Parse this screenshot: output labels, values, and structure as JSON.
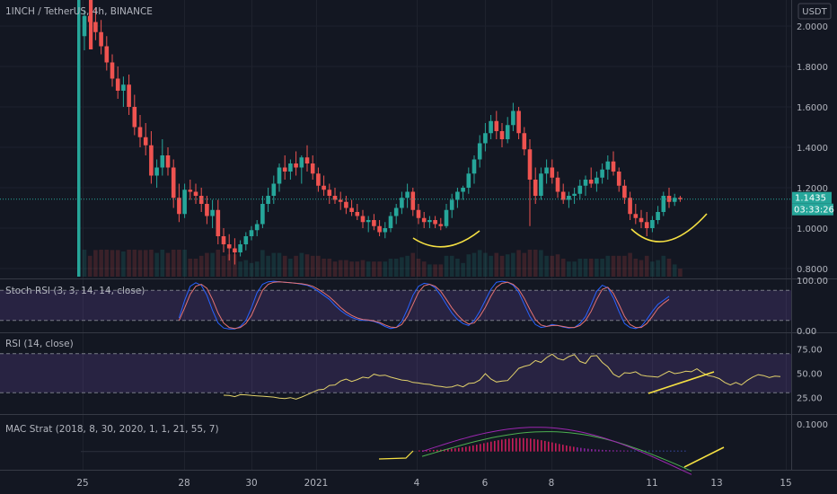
{
  "header": {
    "title": "1INCH / TetherUS, 4h, BINANCE",
    "currency": "USDT"
  },
  "price_tags": {
    "last": "1.1435",
    "countdown": "03:33:26"
  },
  "colors": {
    "up": "#26a69a",
    "down": "#ef5350",
    "annotation": "#f5e043",
    "stoch_k": "#2962ff",
    "stoch_d": "#e57373",
    "rsi": "#e2d16b",
    "band": "#7e57c2",
    "macd_fast": "#9c27b0",
    "macd_slow": "#4caf50"
  },
  "chart_data": [
    {
      "type": "candlestick",
      "title": "1INCH / TetherUS, 4h, BINANCE",
      "ylabel": "USDT",
      "ylim": [
        0.76,
        2.12
      ],
      "y_ticks": [
        "2.0000",
        "1.8000",
        "1.6000",
        "1.4000",
        "1.2000",
        "1.0000",
        "0.8000"
      ],
      "x_ticks": [
        "25",
        "28",
        "30",
        "2021",
        "4",
        "6",
        "8",
        "11",
        "13",
        "15"
      ],
      "last_price": 1.1435,
      "ohlc": [
        [
          1.95,
          2.08,
          1.88,
          2.05
        ],
        [
          2.05,
          2.1,
          1.98,
          2.02
        ],
        [
          2.02,
          2.09,
          1.93,
          1.97
        ],
        [
          1.97,
          2.03,
          1.86,
          1.9
        ],
        [
          1.9,
          1.95,
          1.78,
          1.82
        ],
        [
          1.82,
          1.86,
          1.7,
          1.74
        ],
        [
          1.74,
          1.8,
          1.64,
          1.68
        ],
        [
          1.68,
          1.75,
          1.6,
          1.71
        ],
        [
          1.71,
          1.76,
          1.56,
          1.6
        ],
        [
          1.6,
          1.66,
          1.46,
          1.5
        ],
        [
          1.5,
          1.56,
          1.4,
          1.45
        ],
        [
          1.45,
          1.52,
          1.36,
          1.41
        ],
        [
          1.41,
          1.48,
          1.22,
          1.26
        ],
        [
          1.26,
          1.34,
          1.2,
          1.3
        ],
        [
          1.3,
          1.44,
          1.26,
          1.36
        ],
        [
          1.36,
          1.4,
          1.26,
          1.3
        ],
        [
          1.3,
          1.34,
          1.1,
          1.15
        ],
        [
          1.15,
          1.22,
          1.03,
          1.07
        ],
        [
          1.07,
          1.22,
          1.05,
          1.19
        ],
        [
          1.19,
          1.24,
          1.14,
          1.18
        ],
        [
          1.18,
          1.22,
          1.12,
          1.16
        ],
        [
          1.16,
          1.2,
          1.08,
          1.12
        ],
        [
          1.12,
          1.16,
          1.02,
          1.06
        ],
        [
          1.06,
          1.14,
          1.0,
          1.09
        ],
        [
          1.09,
          1.14,
          0.92,
          0.96
        ],
        [
          0.96,
          1.0,
          0.88,
          0.92
        ],
        [
          0.92,
          0.97,
          0.84,
          0.9
        ],
        [
          0.9,
          0.95,
          0.82,
          0.88
        ],
        [
          0.88,
          0.94,
          0.86,
          0.92
        ],
        [
          0.92,
          0.98,
          0.89,
          0.96
        ],
        [
          0.96,
          1.01,
          0.94,
          0.99
        ],
        [
          0.99,
          1.04,
          0.96,
          1.02
        ],
        [
          1.02,
          1.16,
          1.0,
          1.12
        ],
        [
          1.12,
          1.2,
          1.08,
          1.16
        ],
        [
          1.16,
          1.26,
          1.12,
          1.22
        ],
        [
          1.22,
          1.32,
          1.18,
          1.3
        ],
        [
          1.3,
          1.36,
          1.24,
          1.28
        ],
        [
          1.28,
          1.34,
          1.24,
          1.32
        ],
        [
          1.32,
          1.38,
          1.26,
          1.3
        ],
        [
          1.3,
          1.36,
          1.22,
          1.35
        ],
        [
          1.35,
          1.41,
          1.28,
          1.32
        ],
        [
          1.32,
          1.36,
          1.24,
          1.27
        ],
        [
          1.27,
          1.3,
          1.18,
          1.21
        ],
        [
          1.21,
          1.26,
          1.16,
          1.19
        ],
        [
          1.19,
          1.22,
          1.12,
          1.16
        ],
        [
          1.16,
          1.2,
          1.12,
          1.14
        ],
        [
          1.14,
          1.18,
          1.09,
          1.13
        ],
        [
          1.13,
          1.16,
          1.07,
          1.1
        ],
        [
          1.1,
          1.14,
          1.06,
          1.08
        ],
        [
          1.08,
          1.12,
          1.04,
          1.06
        ],
        [
          1.06,
          1.09,
          1.0,
          1.03
        ],
        [
          1.03,
          1.06,
          0.98,
          1.04
        ],
        [
          1.04,
          1.07,
          0.99,
          1.01
        ],
        [
          1.01,
          1.04,
          0.96,
          0.98
        ],
        [
          0.98,
          1.03,
          0.95,
          1.0
        ],
        [
          1.0,
          1.08,
          0.98,
          1.06
        ],
        [
          1.06,
          1.12,
          1.02,
          1.1
        ],
        [
          1.1,
          1.18,
          1.07,
          1.15
        ],
        [
          1.15,
          1.22,
          1.1,
          1.18
        ],
        [
          1.18,
          1.2,
          1.06,
          1.09
        ],
        [
          1.09,
          1.12,
          1.02,
          1.05
        ],
        [
          1.05,
          1.08,
          1.0,
          1.03
        ],
        [
          1.03,
          1.06,
          1.0,
          1.04
        ],
        [
          1.04,
          1.06,
          1.0,
          1.02
        ],
        [
          1.02,
          1.05,
          0.99,
          1.01
        ],
        [
          1.01,
          1.12,
          1.0,
          1.09
        ],
        [
          1.09,
          1.17,
          1.05,
          1.14
        ],
        [
          1.14,
          1.2,
          1.1,
          1.18
        ],
        [
          1.18,
          1.21,
          1.14,
          1.2
        ],
        [
          1.2,
          1.3,
          1.17,
          1.27
        ],
        [
          1.27,
          1.36,
          1.22,
          1.34
        ],
        [
          1.34,
          1.46,
          1.3,
          1.42
        ],
        [
          1.42,
          1.52,
          1.38,
          1.47
        ],
        [
          1.47,
          1.56,
          1.44,
          1.53
        ],
        [
          1.53,
          1.58,
          1.44,
          1.48
        ],
        [
          1.48,
          1.52,
          1.4,
          1.44
        ],
        [
          1.44,
          1.55,
          1.42,
          1.51
        ],
        [
          1.51,
          1.62,
          1.48,
          1.58
        ],
        [
          1.58,
          1.6,
          1.44,
          1.47
        ],
        [
          1.47,
          1.5,
          1.36,
          1.39
        ],
        [
          1.39,
          1.44,
          1.01,
          1.24
        ],
        [
          1.24,
          1.3,
          1.12,
          1.16
        ],
        [
          1.16,
          1.3,
          1.14,
          1.27
        ],
        [
          1.27,
          1.34,
          1.22,
          1.3
        ],
        [
          1.3,
          1.34,
          1.22,
          1.25
        ],
        [
          1.25,
          1.28,
          1.15,
          1.18
        ],
        [
          1.18,
          1.22,
          1.12,
          1.14
        ],
        [
          1.14,
          1.18,
          1.1,
          1.16
        ],
        [
          1.16,
          1.2,
          1.12,
          1.17
        ],
        [
          1.17,
          1.24,
          1.14,
          1.21
        ],
        [
          1.21,
          1.26,
          1.16,
          1.24
        ],
        [
          1.24,
          1.3,
          1.2,
          1.22
        ],
        [
          1.22,
          1.28,
          1.18,
          1.25
        ],
        [
          1.25,
          1.32,
          1.22,
          1.29
        ],
        [
          1.29,
          1.36,
          1.24,
          1.33
        ],
        [
          1.33,
          1.38,
          1.26,
          1.28
        ],
        [
          1.28,
          1.3,
          1.18,
          1.21
        ],
        [
          1.21,
          1.24,
          1.12,
          1.15
        ],
        [
          1.15,
          1.18,
          1.04,
          1.07
        ],
        [
          1.07,
          1.12,
          1.02,
          1.05
        ],
        [
          1.05,
          1.09,
          1.0,
          1.03
        ],
        [
          1.03,
          1.08,
          0.96,
          1.0
        ],
        [
          1.0,
          1.06,
          0.98,
          1.04
        ],
        [
          1.04,
          1.11,
          1.02,
          1.08
        ],
        [
          1.08,
          1.18,
          1.06,
          1.16
        ],
        [
          1.16,
          1.2,
          1.1,
          1.13
        ],
        [
          1.13,
          1.17,
          1.11,
          1.15
        ],
        [
          1.15,
          1.16,
          1.13,
          1.1435
        ]
      ]
    },
    {
      "type": "line",
      "title": "Stoch RSI (3, 3, 14, 14, close)",
      "ylim": [
        0,
        100
      ],
      "y_ticks": [
        "100.00",
        "0.00"
      ],
      "bands": [
        80,
        20
      ],
      "start_index": 17,
      "series": [
        {
          "values": [
            25,
            60,
            88,
            95,
            90,
            70,
            40,
            15,
            5,
            3,
            3,
            8,
            20,
            45,
            75,
            92,
            97,
            98,
            97,
            96,
            95,
            94,
            92,
            90,
            85,
            78,
            70,
            62,
            50,
            40,
            32,
            26,
            22,
            20,
            20,
            18,
            14,
            8,
            4,
            6,
            18,
            42,
            70,
            88,
            94,
            92,
            85,
            70,
            52,
            35,
            22,
            14,
            10,
            20,
            38,
            60,
            82,
            96,
            98,
            96,
            90,
            76,
            52,
            28,
            12,
            6,
            8,
            12,
            10,
            7,
            5,
            6,
            14,
            28,
            52,
            78,
            90,
            85,
            65,
            38,
            14,
            6,
            4,
            8,
            22,
            38,
            52,
            60,
            68
          ]
        },
        {
          "values": [
            20,
            45,
            72,
            88,
            92,
            84,
            62,
            35,
            15,
            6,
            4,
            6,
            14,
            30,
            55,
            80,
            92,
            96,
            97,
            96,
            95,
            94,
            93,
            91,
            88,
            82,
            75,
            67,
            57,
            46,
            37,
            30,
            25,
            22,
            21,
            19,
            16,
            11,
            7,
            6,
            12,
            28,
            52,
            76,
            89,
            92,
            88,
            78,
            62,
            45,
            31,
            20,
            13,
            15,
            28,
            46,
            68,
            86,
            94,
            96,
            92,
            82,
            64,
            42,
            22,
            11,
            8,
            10,
            10,
            8,
            6,
            6,
            10,
            20,
            38,
            62,
            82,
            86,
            74,
            52,
            28,
            12,
            6,
            6,
            14,
            28,
            44,
            54,
            62
          ]
        }
      ]
    },
    {
      "type": "line",
      "title": "RSI (14, close)",
      "ylim": [
        10,
        90
      ],
      "y_ticks": [
        "75.00",
        "50.00",
        "25.00"
      ],
      "bands": [
        70,
        30
      ],
      "start_index": 25,
      "series": [
        {
          "values": [
            27.5,
            27.2,
            26.0,
            28.0,
            27.8,
            27.2,
            26.8,
            26.5,
            26.0,
            25.5,
            24.5,
            24.0,
            25.0,
            23.5,
            25.5,
            28.0,
            30.5,
            33.0,
            33.5,
            37.5,
            38.0,
            42.0,
            44.0,
            41.5,
            43.5,
            46.0,
            45.0,
            49.0,
            47.5,
            48.0,
            46.0,
            44.5,
            43.0,
            42.5,
            40.5,
            40.0,
            39.0,
            38.5,
            37.0,
            36.5,
            35.5,
            36.0,
            38.0,
            36.0,
            39.5,
            40.0,
            43.0,
            49.5,
            44.0,
            41.0,
            42.0,
            42.5,
            48.5,
            55.0,
            57.0,
            58.5,
            63.0,
            61.0,
            66.0,
            69.5,
            65.0,
            63.5,
            67.0,
            69.0,
            62.0,
            60.0,
            67.5,
            68.0,
            61.0,
            56.5,
            49.0,
            46.0,
            50.5,
            50.0,
            51.5,
            48.0,
            47.0,
            46.5,
            46.0,
            49.0,
            52.0,
            49.5,
            50.5,
            52.0,
            51.5,
            54.5,
            50.5,
            47.5,
            46.5,
            44.5,
            40.5,
            38.0,
            40.5,
            38.0,
            42.5,
            46.0,
            48.5,
            47.5,
            45.5,
            47.0,
            46.5
          ]
        }
      ]
    },
    {
      "type": "line",
      "title": "MAC Strat (2018, 8, 30, 2020, 1, 1, 21, 55, 7)",
      "ylim": [
        -0.06,
        0.13
      ],
      "y_ticks": [
        "0.1000"
      ],
      "baseline": 0
    }
  ]
}
